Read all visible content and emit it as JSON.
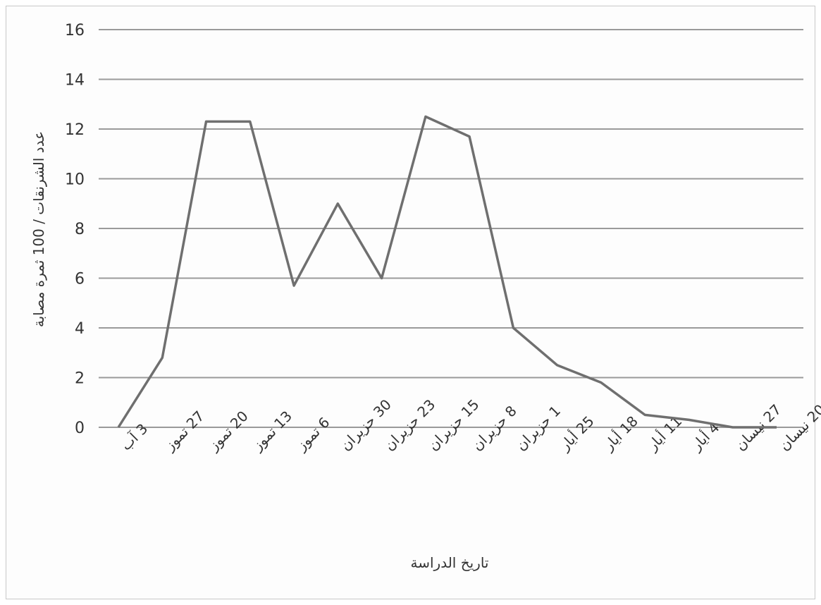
{
  "chart_data": {
    "type": "line",
    "xlabel": "تاريخ الدراسة",
    "ylabel": "عدد الشرنقات / 100 ثمرة مصابة",
    "ylim": [
      0,
      16
    ],
    "yticks": [
      0,
      2,
      4,
      6,
      8,
      10,
      12,
      14,
      16
    ],
    "grid": true,
    "x_direction": "right-to-left",
    "categories": [
      "20 نيسان",
      "27 نيسان",
      "4 أيار",
      "11 أيار",
      "18 أيار",
      "25 أيار",
      "1 حزيران",
      "8 حزيران",
      "15 حزيران",
      "23 حزيران",
      "30 حزيران",
      "6 تموز",
      "13 تموز",
      "20 تموز",
      "27 تموز",
      "3 آب"
    ],
    "series": [
      {
        "values": [
          0,
          0,
          0.3,
          0.5,
          1.8,
          2.5,
          4.0,
          11.7,
          12.5,
          6.0,
          9.0,
          5.7,
          12.3,
          12.3,
          2.8,
          0
        ]
      }
    ]
  }
}
